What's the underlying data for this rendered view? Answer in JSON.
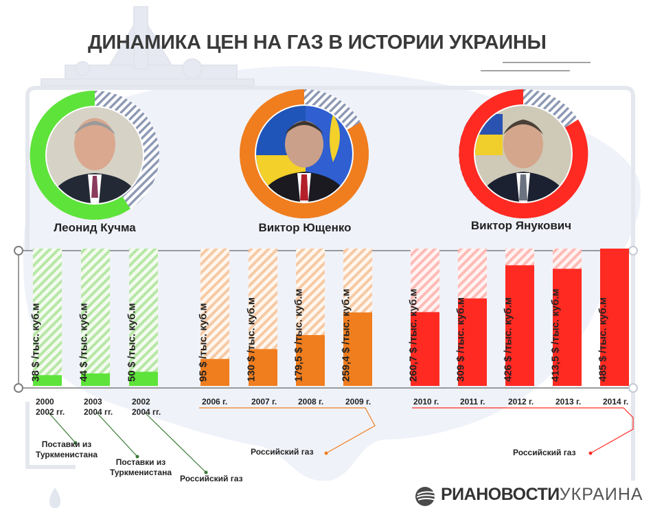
{
  "title": "ДИНАМИКА ЦЕН НА ГАЗ В ИСТОРИИ УКРАИНЫ",
  "presidents": [
    {
      "name": "Леонид Кучма",
      "color": "#5ee33a"
    },
    {
      "name": "Виктор Ющенко",
      "color": "#f07d1e"
    },
    {
      "name": "Виктор Янукович",
      "color": "#ff2a22"
    }
  ],
  "chart_data": {
    "type": "bar",
    "title": "ДИНАМИКА ЦЕН НА ГАЗ В ИСТОРИИ УКРАИНЫ",
    "unit": "$ /тыс. куб.м",
    "ylim": [
      0,
      485
    ],
    "categories": [
      "2000\n2002 гг.",
      "2003\n2004 гг.",
      "2002\n2004 гг.",
      "2006 г.",
      "2007 г.",
      "2008 г.",
      "2009 г.",
      "2010 г.",
      "2011 г.",
      "2012 г.",
      "2013 г.",
      "2014 г."
    ],
    "values": [
      38,
      44,
      50,
      95,
      130,
      179.5,
      259.4,
      260.7,
      309,
      426,
      413.5,
      485
    ],
    "labels": [
      "38 $ /тыс. куб.м",
      "44 $ /тыс. куб.м",
      "50 $ /тыс. куб.м",
      "95 $ /тыс. куб.м",
      "130 $ /тыс. куб.м",
      "179,5 $ /тыс. куб.м",
      "259,4 $ /тыс. куб.м",
      "260,7 $ /тыс. куб.м",
      "309 $ /тыс. куб.м",
      "426 $ /тыс. куб.м",
      "413,5 $ /тыс. куб.м",
      "485 $ /тыс. куб.м"
    ],
    "series_groups": [
      "Леонид Кучма",
      "Леонид Кучма",
      "Леонид Кучма",
      "Виктор Ющенко",
      "Виктор Ющенко",
      "Виктор Ющенко",
      "Виктор Ющенко",
      "Виктор Янукович",
      "Виктор Янукович",
      "Виктор Янукович",
      "Виктор Янукович",
      "Виктор Янукович"
    ]
  },
  "notes": {
    "turkmen1": "Поставки из Туркменистана",
    "turkmen2": "Поставки из Туркменистана",
    "russian1": "Российский газ",
    "russian2": "Российский газ",
    "russian3": "Российский газ"
  },
  "logo": {
    "bold": "РИАНОВОСТИ",
    "light": "УКРАИНА"
  }
}
